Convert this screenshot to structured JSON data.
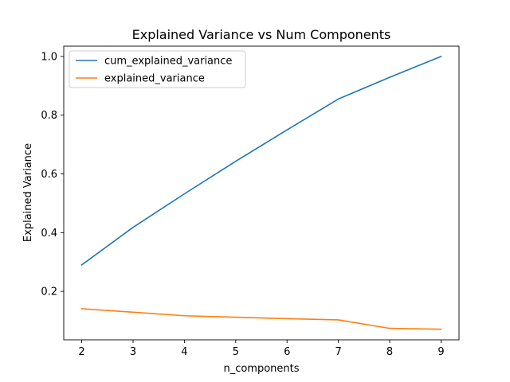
{
  "chart_data": {
    "type": "line",
    "title": "Explained Variance vs Num Components",
    "xlabel": "n_components",
    "ylabel": "Explained Variance",
    "x": [
      2,
      3,
      4,
      5,
      6,
      7,
      8,
      9
    ],
    "xlim": [
      1.65,
      9.35
    ],
    "ylim": [
      0.035,
      1.035
    ],
    "xticks": [
      2,
      3,
      4,
      5,
      6,
      7,
      8,
      9
    ],
    "yticks": [
      "0.2",
      "0.4",
      "0.6",
      "0.8",
      "1.0"
    ],
    "grid": false,
    "legend_position": "upper-left",
    "series": [
      {
        "name": "cum_explained_variance",
        "color": "#1f77b4",
        "values": [
          0.29,
          0.418,
          0.532,
          0.643,
          0.75,
          0.855,
          0.929,
          1.0
        ]
      },
      {
        "name": "explained_variance",
        "color": "#ff7f0e",
        "values": [
          0.141,
          0.129,
          0.117,
          0.112,
          0.107,
          0.103,
          0.074,
          0.071
        ]
      }
    ]
  }
}
